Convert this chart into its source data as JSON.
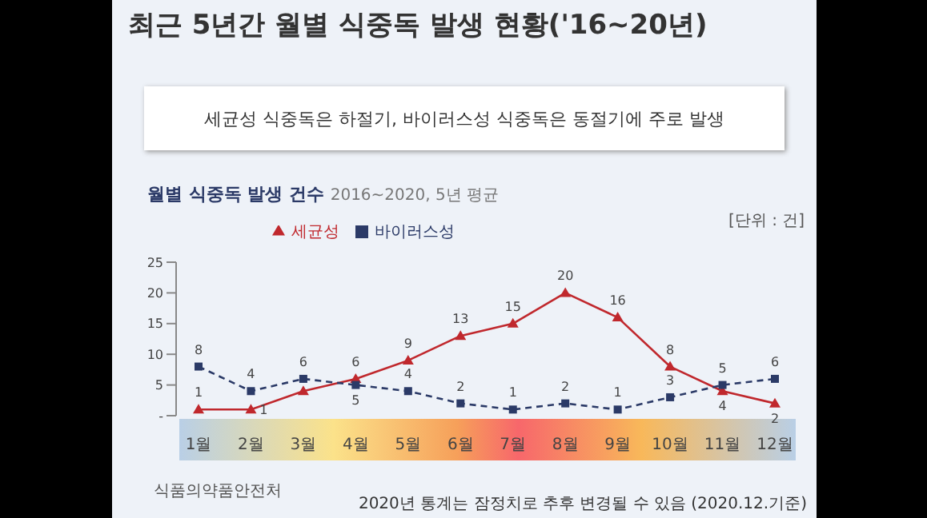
{
  "chart_data": {
    "type": "line",
    "title": "최근 5년간 월별 식중독 발생 현황('16~20년)",
    "subtitle": "세균성 식중독은 하절기, 바이러스성 식중독은 동절기에 주로 발생",
    "annotations": [
      "월별 식중독 발생 건수",
      "2016~2020, 5년 평균",
      "[단위 : 건]",
      "식품의약품안전처",
      "2020년 통계는 잠정치로 추후 변경될 수 있음 (2020.12.기준)"
    ],
    "categories": [
      "1월",
      "2월",
      "3월",
      "4월",
      "5월",
      "6월",
      "7월",
      "8월",
      "9월",
      "10월",
      "11월",
      "12월"
    ],
    "series": [
      {
        "name": "세균성",
        "color": "#c0282d",
        "marker": "triangle",
        "line_style": "solid",
        "values": [
          1,
          1,
          4,
          6,
          9,
          13,
          15,
          20,
          16,
          8,
          4,
          2
        ],
        "value_labels": [
          "1",
          "1",
          null,
          "6",
          "9",
          "13",
          "15",
          "20",
          "16",
          "8",
          "4",
          "2"
        ]
      },
      {
        "name": "바이러스성",
        "color": "#2b3a67",
        "marker": "square",
        "line_style": "dashed",
        "values": [
          8,
          4,
          6,
          5,
          4,
          2,
          1,
          2,
          1,
          3,
          5,
          6
        ],
        "value_labels": [
          "8",
          "4",
          "6",
          "5",
          "4",
          "2",
          "1",
          "2",
          "1",
          "3",
          "5",
          "6"
        ]
      }
    ],
    "ylim": [
      0,
      25
    ],
    "yticks": [
      {
        "value": 0,
        "label": "-"
      },
      5,
      10,
      15,
      20,
      25
    ],
    "grid": false,
    "legend": "top left"
  }
}
